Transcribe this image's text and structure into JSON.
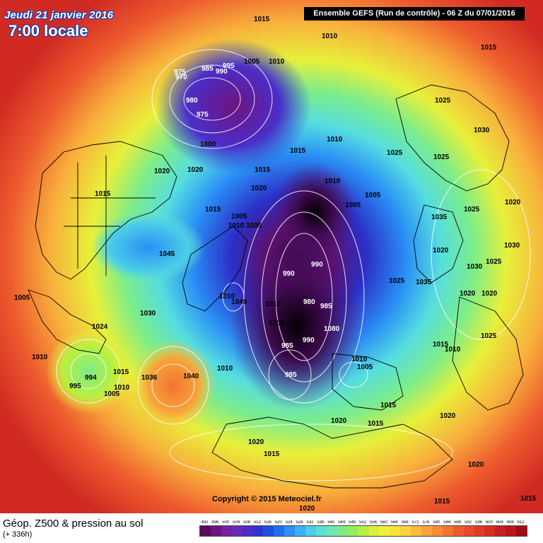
{
  "header": {
    "date_label": "Jeudi 21 janvier 2016",
    "time_label": "7:00 locale",
    "run_label": "Ensemble GEFS  (Run de contrôle)  -  06 Z du 07/01/2016"
  },
  "footer": {
    "product_label": "Géop. Z500 & pression au sol",
    "lead_time_label": "(+ 336h)",
    "copyright": "Copyright © 2015 Meteociel.fr"
  },
  "legend": {
    "ticks": [
      "492",
      "496",
      "500",
      "504",
      "508",
      "512",
      "516",
      "520",
      "524",
      "528",
      "532",
      "536",
      "540",
      "544",
      "548",
      "552",
      "556",
      "560",
      "564",
      "568",
      "572",
      "576",
      "580",
      "584",
      "588",
      "592",
      "596",
      "600",
      "604",
      "608",
      "612"
    ],
    "colors": [
      "#5a0a5a",
      "#6e1480",
      "#7a1fa0",
      "#6a2ab8",
      "#4b2ec8",
      "#2d33d4",
      "#1f4fe0",
      "#1f6ef0",
      "#2a90f5",
      "#3ab0f5",
      "#4ccde8",
      "#5ee0d0",
      "#6ee8b0",
      "#7cec88",
      "#95ef5c",
      "#b8f040",
      "#d8f23a",
      "#eef03a",
      "#f6e43a",
      "#f8d23c",
      "#f8bc3c",
      "#f8a43a",
      "#f68c36",
      "#f27432",
      "#ee5c2e",
      "#e84a2a",
      "#e23a26",
      "#d82c22",
      "#c8201e",
      "#b8161a",
      "#a00c14"
    ]
  },
  "pressure_labels": [
    "1015",
    "1010",
    "1015",
    "975",
    "985",
    "990",
    "995",
    "1005",
    "1010",
    "970",
    "980",
    "975",
    "1025",
    "1030",
    "1010",
    "1000",
    "1015",
    "1025",
    "1025",
    "1020",
    "1020",
    "1015",
    "1010",
    "1020",
    "1005",
    "1005",
    "1015",
    "1025",
    "1015",
    "1005",
    "1010",
    "1005",
    "1035",
    "1020",
    "1045",
    "1020",
    "990",
    "990",
    "1030",
    "1025",
    "1010",
    "1040",
    "980",
    "985",
    "1020",
    "1020",
    "1030",
    "1005",
    "1025",
    "1035",
    "1005",
    "1025",
    "1024",
    "1010",
    "1080",
    "990",
    "1015",
    "1010",
    "985",
    "1010",
    "1005",
    "1030",
    "994",
    "1015",
    "1036",
    "1040",
    "1010",
    "995",
    "1010",
    "1005",
    "985",
    "1015",
    "1010",
    "1020",
    "1020",
    "1020",
    "1015",
    "1015",
    "1020",
    "1020",
    "1015",
    "1015"
  ]
}
